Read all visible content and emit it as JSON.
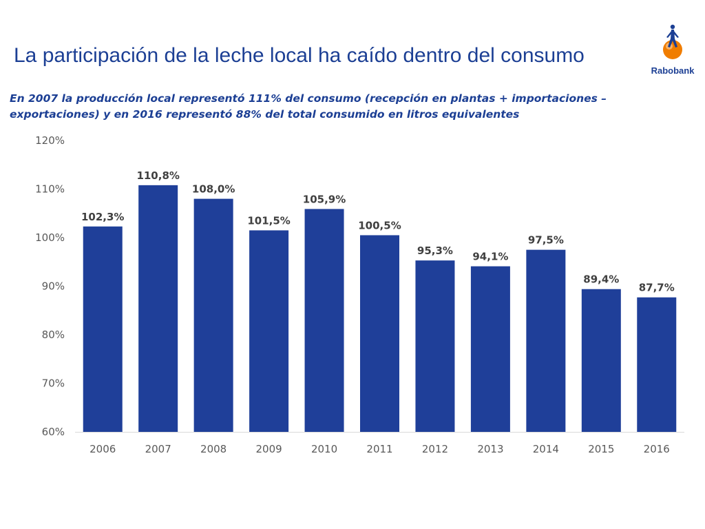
{
  "page": {
    "title": "La participación de la leche local ha caído dentro del consumo",
    "subtitle": "En 2007 la producción local representó 111% del consumo (recepción en plantas + importaciones – exportaciones) y en 2016 representó 88% del total consumido en litros equivalentes"
  },
  "logo": {
    "text": "Rabobank",
    "icon": "rabobank-logo-icon"
  },
  "colors": {
    "bar": "#1f3f99",
    "text": "#1c3f94",
    "accent": "#f07d00"
  },
  "chart_data": {
    "type": "bar",
    "title": "",
    "xlabel": "",
    "ylabel": "",
    "categories": [
      "2006",
      "2007",
      "2008",
      "2009",
      "2010",
      "2011",
      "2012",
      "2013",
      "2014",
      "2015",
      "2016"
    ],
    "values": [
      102.3,
      110.8,
      108.0,
      101.5,
      105.9,
      100.5,
      95.3,
      94.1,
      97.5,
      89.4,
      87.7
    ],
    "data_labels": [
      "102,3%",
      "110,8%",
      "108,0%",
      "101,5%",
      "105,9%",
      "100,5%",
      "95,3%",
      "94,1%",
      "97,5%",
      "89,4%",
      "87,7%"
    ],
    "ylim": [
      60,
      120
    ],
    "yticks": [
      60,
      70,
      80,
      90,
      100,
      110,
      120
    ],
    "ytick_labels": [
      "60%",
      "70%",
      "80%",
      "90%",
      "100%",
      "110%",
      "120%"
    ],
    "grid": false,
    "legend": "none"
  }
}
